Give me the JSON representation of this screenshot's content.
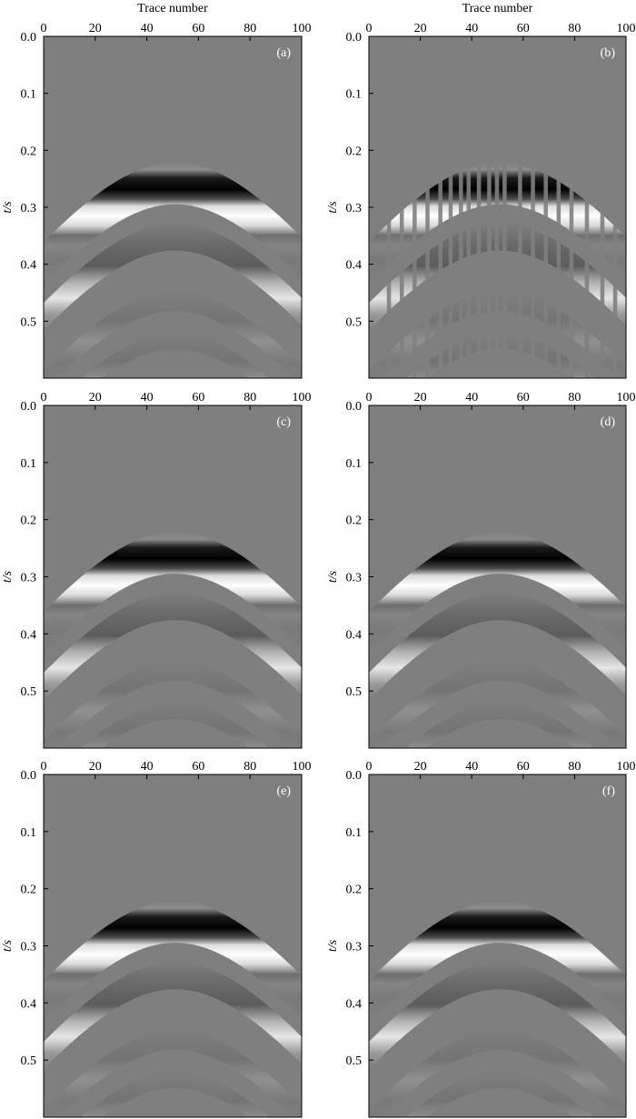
{
  "figure": {
    "panel_background": "#7f7f7f",
    "ink": "#000000"
  },
  "chart_data": [
    {
      "id": "a",
      "type": "heatmap",
      "label": "(a)",
      "xlabel": "Trace number",
      "ylabel": "t/s",
      "x_ticks": [
        0,
        20,
        40,
        60,
        80,
        100
      ],
      "y_ticks": [
        0.0,
        0.1,
        0.2,
        0.3,
        0.4,
        0.5
      ],
      "xlim": [
        0,
        100
      ],
      "ylim": [
        0.0,
        0.6
      ],
      "y_inverted": true,
      "apex_trace": 51,
      "apex_time_s": 0.27,
      "edge_time_s": 0.41,
      "data_missing_traces": false
    },
    {
      "id": "b",
      "type": "heatmap",
      "label": "(b)",
      "xlabel": "Trace number",
      "ylabel": "t/s",
      "x_ticks": [
        0,
        20,
        40,
        60,
        80,
        100
      ],
      "y_ticks": [
        0.0,
        0.1,
        0.2,
        0.3,
        0.4,
        0.5
      ],
      "xlim": [
        0,
        100
      ],
      "ylim": [
        0.0,
        0.6
      ],
      "y_inverted": true,
      "apex_trace": 51,
      "apex_time_s": 0.27,
      "edge_time_s": 0.41,
      "data_missing_traces": true
    },
    {
      "id": "c",
      "type": "heatmap",
      "label": "(c)",
      "xlabel": "",
      "ylabel": "t/s",
      "x_ticks": [
        0,
        20,
        40,
        60,
        80,
        100
      ],
      "y_ticks": [
        0.0,
        0.1,
        0.2,
        0.3,
        0.4,
        0.5
      ],
      "xlim": [
        0,
        100
      ],
      "ylim": [
        0.0,
        0.6
      ],
      "y_inverted": true,
      "apex_trace": 51,
      "apex_time_s": 0.27,
      "edge_time_s": 0.41,
      "data_missing_traces": false
    },
    {
      "id": "d",
      "type": "heatmap",
      "label": "(d)",
      "xlabel": "",
      "ylabel": "t/s",
      "x_ticks": [
        0,
        20,
        40,
        60,
        80,
        100
      ],
      "y_ticks": [
        0.0,
        0.1,
        0.2,
        0.3,
        0.4,
        0.5
      ],
      "xlim": [
        0,
        100
      ],
      "ylim": [
        0.0,
        0.6
      ],
      "y_inverted": true,
      "apex_trace": 51,
      "apex_time_s": 0.27,
      "edge_time_s": 0.41,
      "data_missing_traces": false
    },
    {
      "id": "e",
      "type": "heatmap",
      "label": "(e)",
      "xlabel": "",
      "ylabel": "t/s",
      "x_ticks": [
        0,
        20,
        40,
        60,
        80,
        100
      ],
      "y_ticks": [
        0.0,
        0.1,
        0.2,
        0.3,
        0.4,
        0.5
      ],
      "xlim": [
        0,
        100
      ],
      "ylim": [
        0.0,
        0.6
      ],
      "y_inverted": true,
      "apex_trace": 51,
      "apex_time_s": 0.27,
      "edge_time_s": 0.41,
      "data_missing_traces": false
    },
    {
      "id": "f",
      "type": "heatmap",
      "label": "(f)",
      "xlabel": "",
      "ylabel": "t/s",
      "x_ticks": [
        0,
        20,
        40,
        60,
        80,
        100
      ],
      "y_ticks": [
        0.0,
        0.1,
        0.2,
        0.3,
        0.4,
        0.5
      ],
      "xlim": [
        0,
        100
      ],
      "ylim": [
        0.0,
        0.6
      ],
      "y_inverted": true,
      "apex_trace": 51,
      "apex_time_s": 0.27,
      "edge_time_s": 0.41,
      "data_missing_traces": false
    }
  ]
}
